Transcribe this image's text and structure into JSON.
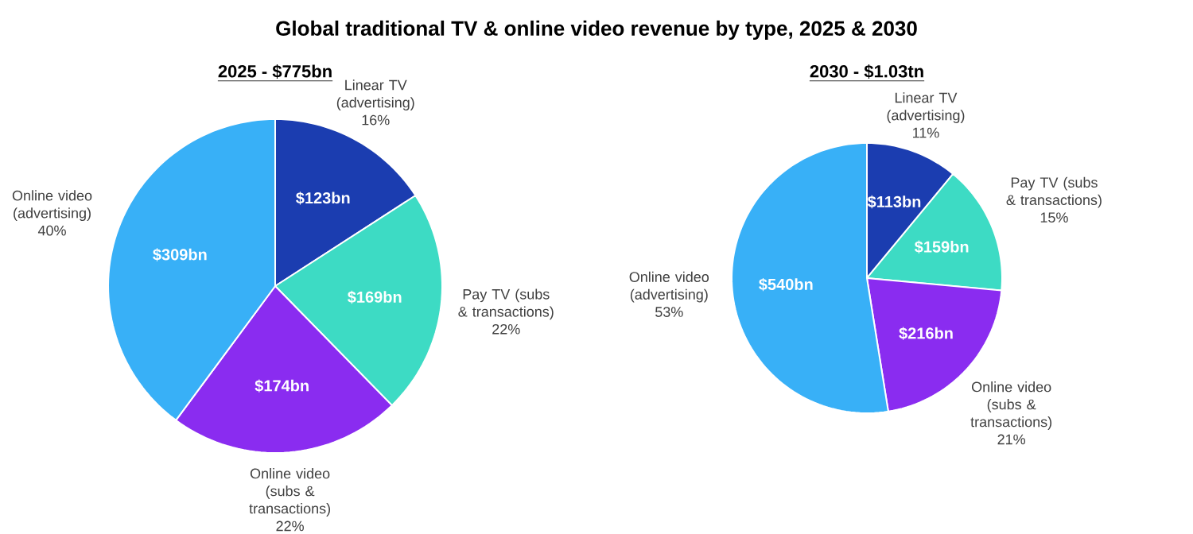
{
  "chart_data": [
    {
      "type": "pie",
      "title": "Global traditional TV & online video revenue by type, 2025 & 2030",
      "subtitle": "2025 - $775bn",
      "categories": [
        "Linear TV (advertising) 16%",
        "Pay TV (subs & transactions) 22%",
        "Online video (subs & transactions) 22%",
        "Online video (advertising) 40%"
      ],
      "values": [
        123,
        169,
        174,
        309
      ],
      "value_labels": [
        "$123bn",
        "$169bn",
        "$174bn",
        "$309bn"
      ],
      "colors": [
        "#1b3db0",
        "#3ddbc4",
        "#8a2cf0",
        "#38b0f7"
      ]
    },
    {
      "type": "pie",
      "subtitle": "2030 - $1.03tn",
      "categories": [
        "Linear TV (advertising) 11%",
        "Pay TV (subs & transactions) 15%",
        "Online video (subs & transactions) 21%",
        "Online video (advertising) 53%"
      ],
      "values": [
        113,
        159,
        216,
        540
      ],
      "value_labels": [
        "$113bn",
        "$159bn",
        "$216bn",
        "$540bn"
      ],
      "colors": [
        "#1b3db0",
        "#3ddbc4",
        "#8a2cf0",
        "#38b0f7"
      ]
    }
  ]
}
